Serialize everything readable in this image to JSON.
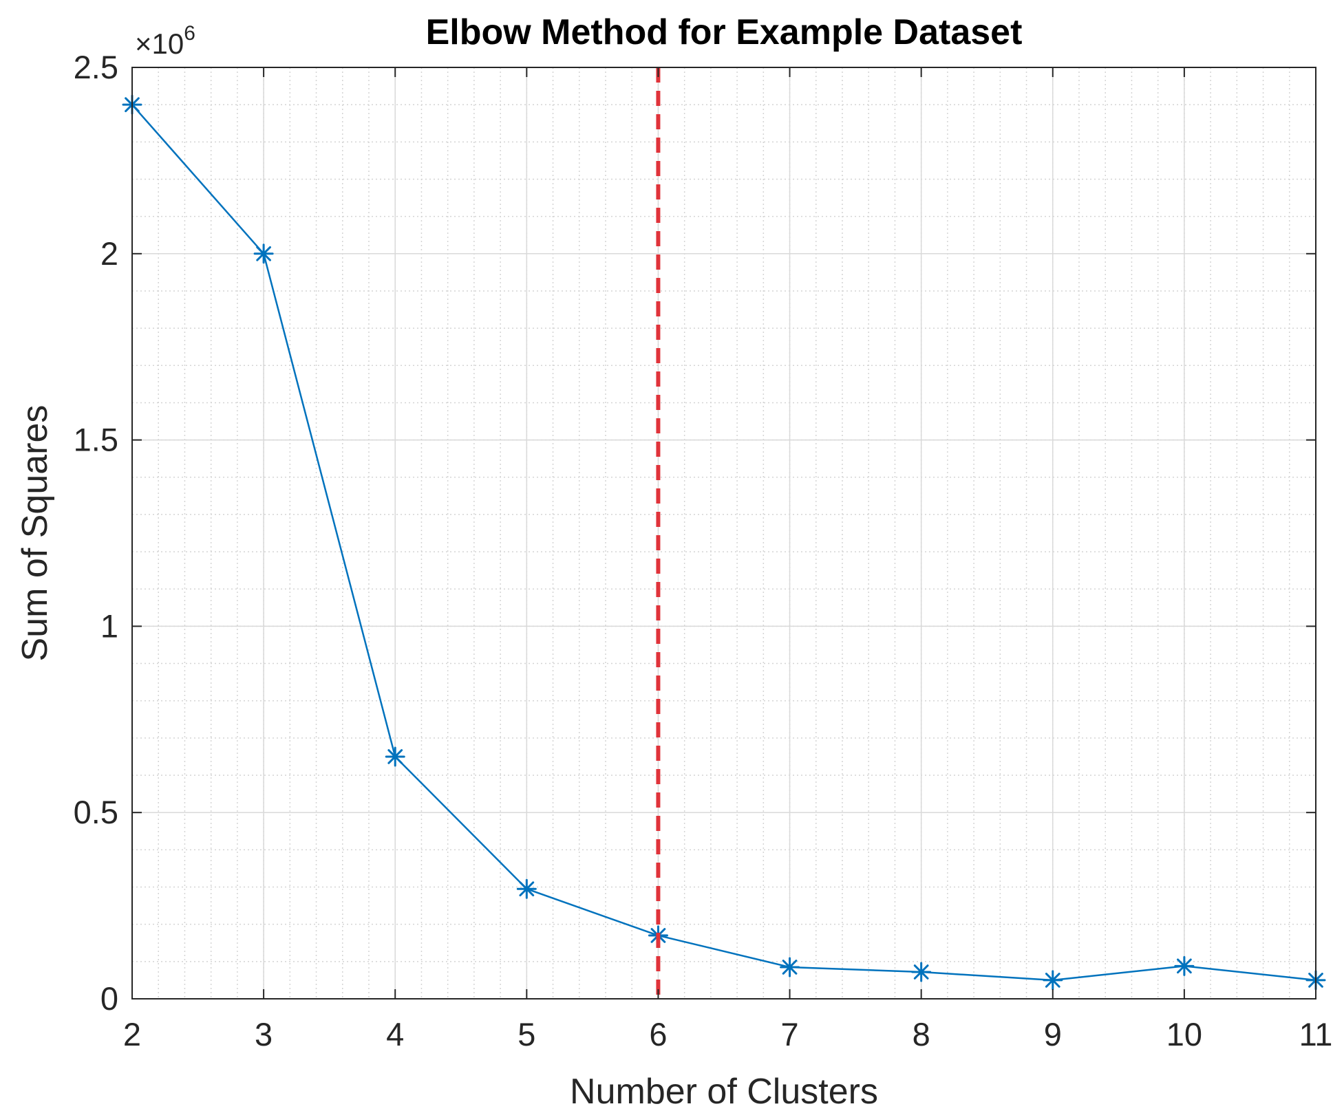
{
  "chart_data": {
    "type": "line",
    "title": "Elbow Method for Example Dataset",
    "xlabel": "Number of Clusters",
    "ylabel": "Sum of Squares",
    "x": [
      2,
      3,
      4,
      5,
      6,
      7,
      8,
      9,
      10,
      11
    ],
    "series": [
      {
        "values": [
          2400000,
          2000000,
          650000,
          295000,
          170000,
          85000,
          72000,
          50000,
          88000,
          50000
        ],
        "color": "#0072BD",
        "marker": "asterisk"
      }
    ],
    "xlim": [
      2,
      11
    ],
    "ylim": [
      0,
      2500000
    ],
    "x_ticks": [
      2,
      3,
      4,
      5,
      6,
      7,
      8,
      9,
      10,
      11
    ],
    "x_tick_labels": [
      "2",
      "3",
      "4",
      "5",
      "6",
      "7",
      "8",
      "9",
      "10",
      "11"
    ],
    "y_ticks": [
      0,
      500000,
      1000000,
      1500000,
      2000000,
      2500000
    ],
    "y_tick_labels": [
      "0",
      "0.5",
      "1",
      "1.5",
      "2",
      "2.5"
    ],
    "y_exponent_label": "×10",
    "y_exponent": "6",
    "reference_line": {
      "orientation": "vertical",
      "x": 6,
      "style": "dashed",
      "color": "#E0333A"
    },
    "grid": true,
    "minor_grid": true
  }
}
